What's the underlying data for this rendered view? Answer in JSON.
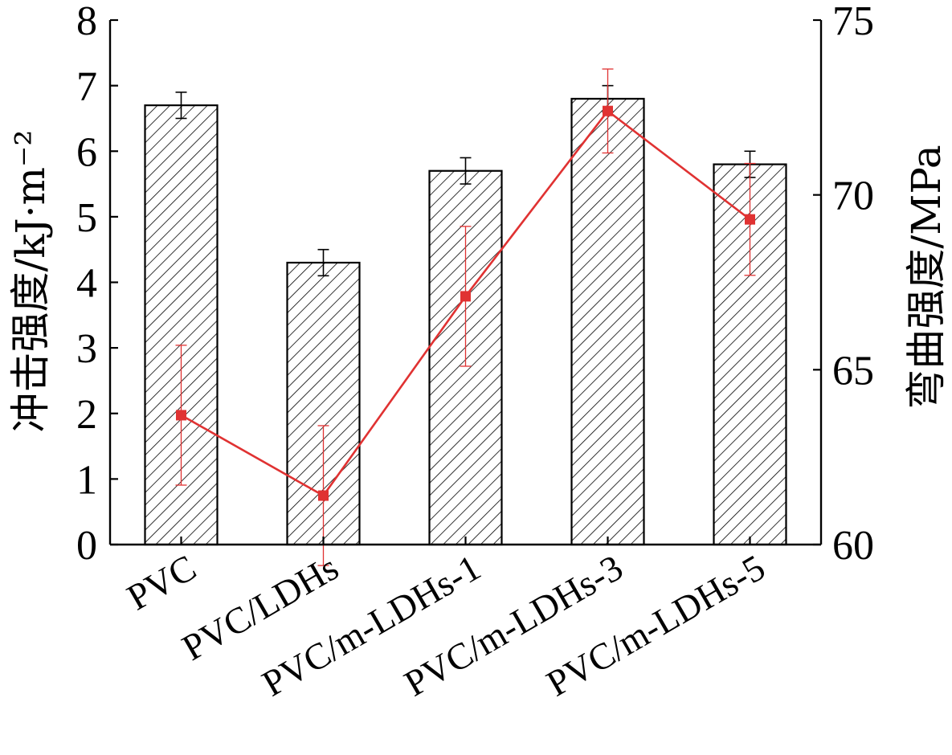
{
  "chart_data": {
    "type": "bar",
    "categories": [
      "PVC",
      "PVC/LDHs",
      "PVC/m-LDHs-1",
      "PVC/m-LDHs-3",
      "PVC/m-LDHs-5"
    ],
    "ylabel": "冲击强度/kJ·m⁻²",
    "ylabel_superscript": "−2",
    "ylim": [
      0,
      8
    ],
    "yticks": [
      "0",
      "1",
      "2",
      "3",
      "4",
      "5",
      "6",
      "7",
      "8"
    ],
    "y2label": "弯曲强度/MPa",
    "y2lim": [
      60,
      75
    ],
    "y2ticks": [
      "60",
      "65",
      "70",
      "75"
    ],
    "grid": false,
    "series": [
      {
        "type": "bar",
        "axis": "left",
        "values": [
          6.7,
          4.3,
          5.7,
          6.8,
          5.8
        ],
        "errors": [
          0.2,
          0.2,
          0.2,
          0.2,
          0.2
        ],
        "pattern": "diagonal-hatch",
        "color": "#000000"
      },
      {
        "type": "line",
        "axis": "right",
        "values": [
          63.7,
          61.4,
          67.1,
          72.4,
          69.3
        ],
        "errors": [
          2.0,
          2.0,
          2.0,
          1.2,
          1.6
        ],
        "marker": "square",
        "color": "#e03232"
      }
    ]
  }
}
